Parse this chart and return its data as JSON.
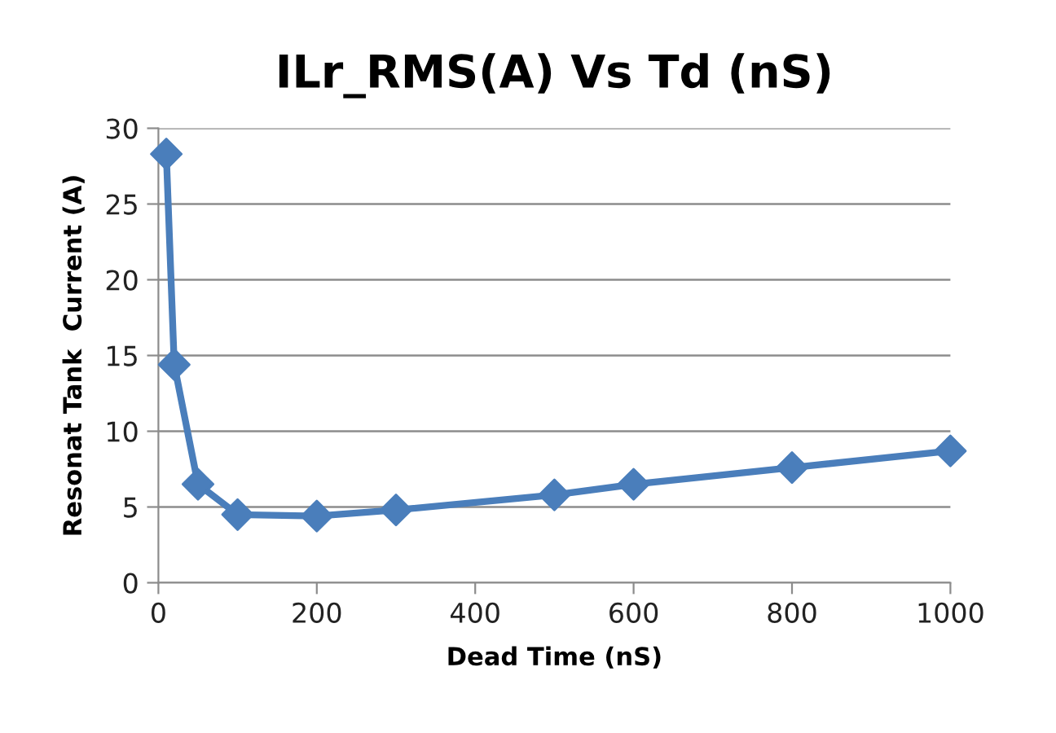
{
  "chart_data": {
    "type": "line",
    "title": "ILr_RMS(A) Vs Td (nS)",
    "xlabel": "Dead Time (nS)",
    "ylabel": "Resonat Tank  Current (A)",
    "x": [
      10,
      20,
      50,
      100,
      200,
      300,
      500,
      600,
      800,
      1000
    ],
    "series": [
      {
        "color": "#4a7ebb",
        "values": [
          28.3,
          14.4,
          6.5,
          4.5,
          4.4,
          4.8,
          5.8,
          6.5,
          7.6,
          8.7
        ]
      }
    ],
    "xlim": [
      0,
      1000
    ],
    "xticks": [
      0,
      200,
      400,
      600,
      800,
      1000
    ],
    "ylim": [
      0,
      30
    ],
    "yticks": [
      0,
      5,
      10,
      15,
      20,
      25,
      30
    ],
    "grid": "y",
    "marker": "diamond",
    "line_style": "solid"
  }
}
